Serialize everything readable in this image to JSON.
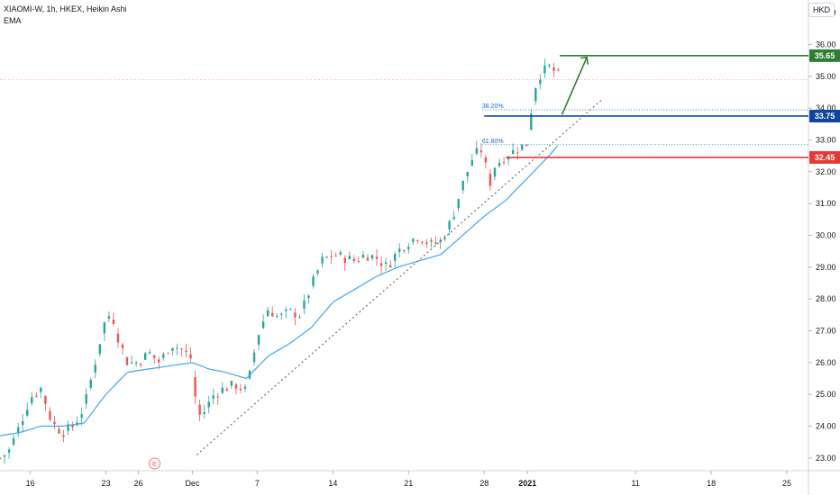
{
  "legend": {
    "title": "XIAOMI-W, 1h, HKEX, Heikin Ashi",
    "indicator": "EMA"
  },
  "currency": "HKD",
  "colors": {
    "up": "#26a69a",
    "down": "#ef5350",
    "ema": "#42a5f5",
    "target": "#2e7d32",
    "entry": "#0d47a1",
    "stop": "#e53935",
    "fib": "#1e6fd0",
    "trend": "#555555"
  },
  "chart_data": {
    "type": "candlestick",
    "y_axis": {
      "min": 22.6,
      "max": 37.4,
      "ticks": [
        "23.00",
        "24.00",
        "25.00",
        "26.00",
        "27.00",
        "28.00",
        "29.00",
        "30.00",
        "31.00",
        "32.00",
        "33.00",
        "34.00",
        "35.00",
        "36.00",
        "37.00"
      ]
    },
    "x_axis": {
      "ticks": [
        {
          "label": "16",
          "day": 16,
          "bold": false
        },
        {
          "label": "23",
          "day": 23,
          "bold": false
        },
        {
          "label": "26",
          "day": 26,
          "bold": false
        },
        {
          "label": "Dec",
          "day": 31,
          "bold": false
        },
        {
          "label": "7",
          "day": 37,
          "bold": false
        },
        {
          "label": "14",
          "day": 44,
          "bold": false
        },
        {
          "label": "21",
          "day": 51,
          "bold": false
        },
        {
          "label": "28",
          "day": 58,
          "bold": false
        },
        {
          "label": "2021",
          "day": 62,
          "bold": true
        },
        {
          "label": "11",
          "day": 72,
          "bold": false
        },
        {
          "label": "18",
          "day": 79,
          "bold": false
        },
        {
          "label": "25",
          "day": 86,
          "bold": false
        }
      ]
    },
    "price_path": [
      [
        13.2,
        23.0
      ],
      [
        14.0,
        23.2
      ],
      [
        15.0,
        24.0
      ],
      [
        16.0,
        24.9
      ],
      [
        17.0,
        25.2
      ],
      [
        18.0,
        24.1
      ],
      [
        19.0,
        23.8
      ],
      [
        20.0,
        24.0
      ],
      [
        21.0,
        24.6
      ],
      [
        22.0,
        26.0
      ],
      [
        22.8,
        27.2
      ],
      [
        23.5,
        27.6
      ],
      [
        24.2,
        26.7
      ],
      [
        25.0,
        26.0
      ],
      [
        26.0,
        26.0
      ],
      [
        27.0,
        26.3
      ],
      [
        28.0,
        26.0
      ],
      [
        29.0,
        26.6
      ],
      [
        30.0,
        26.4
      ],
      [
        31.0,
        26.1
      ],
      [
        31.4,
        24.3
      ],
      [
        32.0,
        24.4
      ],
      [
        33.0,
        25.0
      ],
      [
        34.0,
        25.2
      ],
      [
        35.0,
        25.3
      ],
      [
        36.0,
        25.1
      ],
      [
        37.0,
        26.8
      ],
      [
        38.0,
        27.7
      ],
      [
        39.0,
        27.4
      ],
      [
        40.0,
        27.6
      ],
      [
        41.0,
        27.5
      ],
      [
        42.0,
        28.4
      ],
      [
        43.0,
        29.2
      ],
      [
        44.0,
        29.4
      ],
      [
        45.0,
        29.3
      ],
      [
        46.0,
        29.2
      ],
      [
        47.0,
        29.4
      ],
      [
        48.0,
        29.3
      ],
      [
        49.0,
        29.0
      ],
      [
        50.0,
        29.5
      ],
      [
        51.0,
        29.8
      ],
      [
        52.0,
        30.0
      ],
      [
        53.0,
        29.7
      ],
      [
        54.0,
        29.8
      ],
      [
        55.0,
        30.5
      ],
      [
        56.0,
        31.6
      ],
      [
        57.0,
        32.5
      ],
      [
        57.8,
        32.7
      ],
      [
        58.5,
        31.6
      ],
      [
        59.0,
        32.2
      ],
      [
        60.0,
        32.5
      ],
      [
        61.0,
        32.7
      ],
      [
        62.0,
        32.9
      ],
      [
        62.5,
        34.4
      ],
      [
        63.0,
        35.0
      ],
      [
        64.0,
        35.3
      ],
      [
        65.0,
        35.0
      ]
    ],
    "ema_path": [
      [
        13.2,
        23.7
      ],
      [
        15.0,
        23.8
      ],
      [
        17.0,
        24.0
      ],
      [
        19.0,
        24.0
      ],
      [
        21.0,
        24.1
      ],
      [
        23.0,
        25.0
      ],
      [
        25.0,
        25.7
      ],
      [
        27.0,
        25.8
      ],
      [
        29.0,
        25.9
      ],
      [
        31.0,
        26.0
      ],
      [
        32.5,
        25.8
      ],
      [
        34.0,
        25.7
      ],
      [
        36.0,
        25.5
      ],
      [
        38.0,
        26.2
      ],
      [
        40.0,
        26.6
      ],
      [
        42.0,
        27.1
      ],
      [
        44.0,
        27.9
      ],
      [
        46.0,
        28.3
      ],
      [
        48.0,
        28.7
      ],
      [
        50.0,
        29.0
      ],
      [
        52.0,
        29.2
      ],
      [
        54.0,
        29.4
      ],
      [
        56.0,
        30.0
      ],
      [
        58.0,
        30.6
      ],
      [
        60.0,
        31.1
      ],
      [
        62.0,
        31.8
      ],
      [
        64.0,
        32.5
      ],
      [
        65.0,
        32.9
      ]
    ],
    "levels": [
      {
        "label": "35.65",
        "value": 35.65,
        "role": "target",
        "start_day": 65
      },
      {
        "label": "33.75",
        "value": 33.75,
        "role": "entry",
        "start_day": 58
      },
      {
        "label": "32.45",
        "value": 32.45,
        "role": "stop",
        "start_day": 60
      }
    ],
    "fib_lines": [
      {
        "label": "38.20%",
        "value": 33.95
      },
      {
        "label": "61.80%",
        "value": 32.85
      }
    ],
    "dotted_line_value": 34.9,
    "trendline": {
      "from": [
        31.4,
        23.1
      ],
      "to": [
        69.0,
        34.3
      ]
    },
    "projection_arrow": {
      "from": [
        65.2,
        33.8
      ],
      "to": [
        67.5,
        35.6
      ]
    },
    "target_line_end_day": 90,
    "event_marker": {
      "label": "E",
      "day": 27.5
    }
  }
}
